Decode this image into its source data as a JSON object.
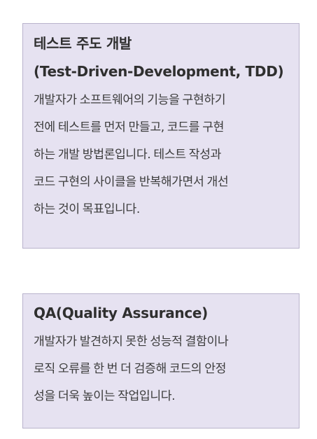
{
  "cards": [
    {
      "title_lines": [
        "테스트 주도 개발",
        "(Test-Driven-Development, TDD)"
      ],
      "body_lines": [
        "개발자가 소프트웨어의 기능을 구현하기",
        "전에 테스트를 먼저 만들고, 코드를 구현",
        "하는 개발 방법론입니다. 테스트 작성과",
        "코드 구현의 사이클을 반복해가면서 개선",
        "하는 것이 목표입니다."
      ]
    },
    {
      "title_lines": [
        "QA(Quality Assurance)"
      ],
      "body_lines": [
        "개발자가 발견하지 못한 성능적 결함이나",
        "로직 오류를 한 번 더 검증해 코드의 안정",
        "성을 더욱 높이는 작업입니다."
      ]
    }
  ],
  "colors": {
    "card_background": "#e6e2f1",
    "card_border": "#b9b3cc",
    "title_text": "#2f2f2f",
    "body_text": "#3c3c3c"
  }
}
